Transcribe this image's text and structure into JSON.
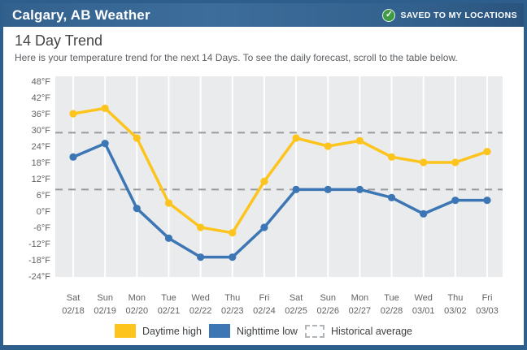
{
  "header": {
    "title": "Calgary, AB Weather",
    "saved_label": "SAVED TO MY LOCATIONS",
    "check_icon": "✓"
  },
  "section": {
    "title": "14 Day Trend",
    "description": "Here is your temperature trend for the next 14 Days. To see the daily forecast, scroll to the table below."
  },
  "chart_data": {
    "type": "line",
    "categories": [
      {
        "day": "Sat",
        "date": "02/18"
      },
      {
        "day": "Sun",
        "date": "02/19"
      },
      {
        "day": "Mon",
        "date": "02/20"
      },
      {
        "day": "Tue",
        "date": "02/21"
      },
      {
        "day": "Wed",
        "date": "02/22"
      },
      {
        "day": "Thu",
        "date": "02/23"
      },
      {
        "day": "Fri",
        "date": "02/24"
      },
      {
        "day": "Sat",
        "date": "02/25"
      },
      {
        "day": "Sun",
        "date": "02/26"
      },
      {
        "day": "Mon",
        "date": "02/27"
      },
      {
        "day": "Tue",
        "date": "02/28"
      },
      {
        "day": "Wed",
        "date": "03/01"
      },
      {
        "day": "Thu",
        "date": "03/02"
      },
      {
        "day": "Fri",
        "date": "03/03"
      }
    ],
    "series": [
      {
        "name": "Daytime high",
        "color": "#fcc41d",
        "values": [
          36,
          38,
          27,
          3,
          -6,
          -8,
          11,
          27,
          24,
          26,
          20,
          18,
          18,
          22
        ]
      },
      {
        "name": "Nighttime low",
        "color": "#3c76b4",
        "values": [
          20,
          25,
          1,
          -10,
          -17,
          -17,
          -6,
          8,
          8,
          8,
          5,
          -1,
          4,
          4
        ]
      }
    ],
    "historical_average": {
      "name": "Historical average",
      "high": 29,
      "low": 8,
      "color": "#9b9b9b"
    },
    "yticks": [
      48,
      42,
      36,
      30,
      24,
      18,
      12,
      6,
      0,
      -6,
      -12,
      -18,
      -24
    ],
    "ytick_suffix": "°F",
    "ylim": [
      -26,
      50
    ],
    "plot_background": "#e9ebed",
    "gridlines": "vertical-white",
    "legend_position": "bottom",
    "axis_text_color": "#616161"
  }
}
